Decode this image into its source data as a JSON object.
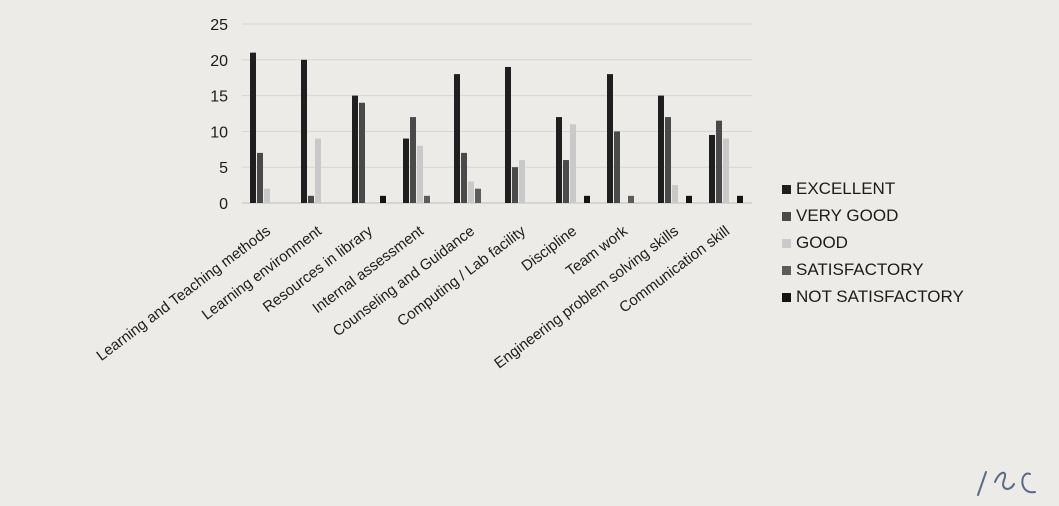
{
  "chart_data": {
    "type": "bar",
    "categories": [
      "Learning and Teaching methods",
      "Learning environment",
      "Resources in library",
      "Internal assessment",
      "Counseling and Guidance",
      "Computing / Lab facility",
      "Discipline",
      "Team work",
      "Engineering problem solving skills",
      "Communication skill"
    ],
    "series": [
      {
        "name": "EXCELLENT",
        "color": "#1f1f1f",
        "values": [
          21,
          20,
          15,
          9,
          18,
          19,
          12,
          18,
          15,
          9.5
        ]
      },
      {
        "name": "VERY GOOD",
        "color": "#4a4a4a",
        "values": [
          7,
          1,
          14,
          12,
          7,
          5,
          6,
          10,
          12,
          11.5
        ]
      },
      {
        "name": "GOOD",
        "color": "#c9c9c9",
        "values": [
          2,
          9,
          0,
          8,
          3,
          6,
          11,
          0,
          2.5,
          9
        ]
      },
      {
        "name": "SATISFACTORY",
        "color": "#5c5c5c",
        "values": [
          0,
          0,
          0,
          1,
          2,
          0,
          0,
          1,
          0,
          0
        ]
      },
      {
        "name": "NOT SATISFACTORY",
        "color": "#141414",
        "values": [
          0,
          0,
          1,
          0,
          0,
          0,
          1,
          0,
          1,
          1
        ]
      }
    ],
    "yticks": [
      0,
      5,
      10,
      15,
      20,
      25
    ],
    "ylim": [
      0,
      25
    ],
    "grid": true,
    "legend_position": "right",
    "title": "",
    "xlabel": "",
    "ylabel": ""
  }
}
